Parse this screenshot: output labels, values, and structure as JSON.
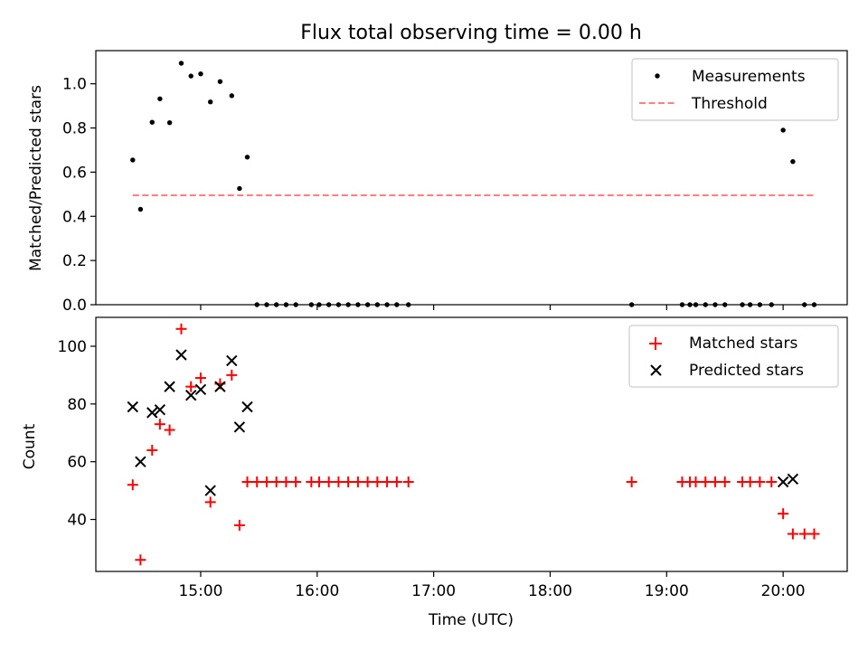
{
  "figure": {
    "title": "Flux total observing time = 0.00 h"
  },
  "chart_data": [
    {
      "type": "scatter",
      "ylabel": "Matched/Predicted stars",
      "xlim": [
        "14:06",
        "20:33"
      ],
      "ylim": [
        0,
        1.15
      ],
      "yticks": [
        0.0,
        0.2,
        0.4,
        0.6,
        0.8,
        1.0
      ],
      "ytick_labels": [
        "0.0",
        "0.2",
        "0.4",
        "0.6",
        "0.8",
        "1.0"
      ],
      "grid": false,
      "legend_position": "top-right",
      "series": [
        {
          "name": "Measurements",
          "marker": "dot",
          "color": "#000000",
          "points": [
            [
              "14:25",
              0.655
            ],
            [
              "14:29",
              0.432
            ],
            [
              "14:35",
              0.826
            ],
            [
              "14:39",
              0.932
            ],
            [
              "14:44",
              0.824
            ],
            [
              "14:50",
              1.093
            ],
            [
              "14:55",
              1.035
            ],
            [
              "15:00",
              1.045
            ],
            [
              "15:05",
              0.918
            ],
            [
              "15:10",
              1.01
            ],
            [
              "15:16",
              0.946
            ],
            [
              "15:20",
              0.526
            ],
            [
              "15:24",
              0.668
            ],
            [
              "15:29",
              0.0
            ],
            [
              "15:34",
              0.0
            ],
            [
              "15:39",
              0.0
            ],
            [
              "15:44",
              0.0
            ],
            [
              "15:49",
              0.0
            ],
            [
              "15:57",
              0.0
            ],
            [
              "16:01",
              0.0
            ],
            [
              "16:06",
              0.0
            ],
            [
              "16:11",
              0.0
            ],
            [
              "16:16",
              0.0
            ],
            [
              "16:21",
              0.0
            ],
            [
              "16:26",
              0.0
            ],
            [
              "16:31",
              0.0
            ],
            [
              "16:36",
              0.0
            ],
            [
              "16:41",
              0.0
            ],
            [
              "16:47",
              0.0
            ],
            [
              "18:42",
              0.0
            ],
            [
              "19:08",
              0.0
            ],
            [
              "19:12",
              0.0
            ],
            [
              "19:15",
              0.0
            ],
            [
              "19:20",
              0.0
            ],
            [
              "19:25",
              0.0
            ],
            [
              "19:30",
              0.0
            ],
            [
              "19:39",
              0.0
            ],
            [
              "19:43",
              0.0
            ],
            [
              "19:48",
              0.0
            ],
            [
              "19:54",
              0.0
            ],
            [
              "20:00",
              0.79
            ],
            [
              "20:05",
              0.648
            ],
            [
              "20:11",
              0.0
            ],
            [
              "20:16",
              0.0
            ]
          ]
        },
        {
          "name": "Threshold",
          "marker": "dashed-line",
          "color": "#ff7f7f",
          "points": [
            [
              "14:25",
              0.495
            ],
            [
              "20:16",
              0.495
            ]
          ]
        }
      ]
    },
    {
      "type": "scatter",
      "xlabel": "Time (UTC)",
      "ylabel": "Count",
      "xlim": [
        "14:06",
        "20:33"
      ],
      "ylim": [
        22,
        110
      ],
      "xticks": [
        "15:00",
        "16:00",
        "17:00",
        "18:00",
        "19:00",
        "20:00"
      ],
      "yticks": [
        40,
        60,
        80,
        100
      ],
      "grid": false,
      "legend_position": "top-right",
      "series": [
        {
          "name": "Matched stars",
          "marker": "plus",
          "color": "#ff0000",
          "points": [
            [
              "14:25",
              52
            ],
            [
              "14:29",
              26
            ],
            [
              "14:35",
              64
            ],
            [
              "14:39",
              73
            ],
            [
              "14:44",
              71
            ],
            [
              "14:50",
              106
            ],
            [
              "14:55",
              86
            ],
            [
              "15:00",
              89
            ],
            [
              "15:05",
              46
            ],
            [
              "15:10",
              87
            ],
            [
              "15:16",
              90
            ],
            [
              "15:20",
              38
            ],
            [
              "15:24",
              53
            ],
            [
              "15:29",
              53
            ],
            [
              "15:34",
              53
            ],
            [
              "15:39",
              53
            ],
            [
              "15:44",
              53
            ],
            [
              "15:49",
              53
            ],
            [
              "15:57",
              53
            ],
            [
              "16:01",
              53
            ],
            [
              "16:06",
              53
            ],
            [
              "16:11",
              53
            ],
            [
              "16:16",
              53
            ],
            [
              "16:21",
              53
            ],
            [
              "16:26",
              53
            ],
            [
              "16:31",
              53
            ],
            [
              "16:36",
              53
            ],
            [
              "16:41",
              53
            ],
            [
              "16:47",
              53
            ],
            [
              "18:42",
              53
            ],
            [
              "19:08",
              53
            ],
            [
              "19:12",
              53
            ],
            [
              "19:15",
              53
            ],
            [
              "19:20",
              53
            ],
            [
              "19:25",
              53
            ],
            [
              "19:30",
              53
            ],
            [
              "19:39",
              53
            ],
            [
              "19:43",
              53
            ],
            [
              "19:48",
              53
            ],
            [
              "19:54",
              53
            ],
            [
              "20:00",
              42
            ],
            [
              "20:05",
              35
            ],
            [
              "20:11",
              35
            ],
            [
              "20:16",
              35
            ]
          ]
        },
        {
          "name": "Predicted stars",
          "marker": "x",
          "color": "#000000",
          "points": [
            [
              "14:25",
              79
            ],
            [
              "14:29",
              60
            ],
            [
              "14:35",
              77
            ],
            [
              "14:39",
              78
            ],
            [
              "14:44",
              86
            ],
            [
              "14:50",
              97
            ],
            [
              "14:55",
              83
            ],
            [
              "15:00",
              85
            ],
            [
              "15:05",
              50
            ],
            [
              "15:10",
              86
            ],
            [
              "15:16",
              95
            ],
            [
              "15:20",
              72
            ],
            [
              "15:24",
              79
            ],
            [
              "20:00",
              53
            ],
            [
              "20:05",
              54
            ]
          ]
        }
      ]
    }
  ]
}
